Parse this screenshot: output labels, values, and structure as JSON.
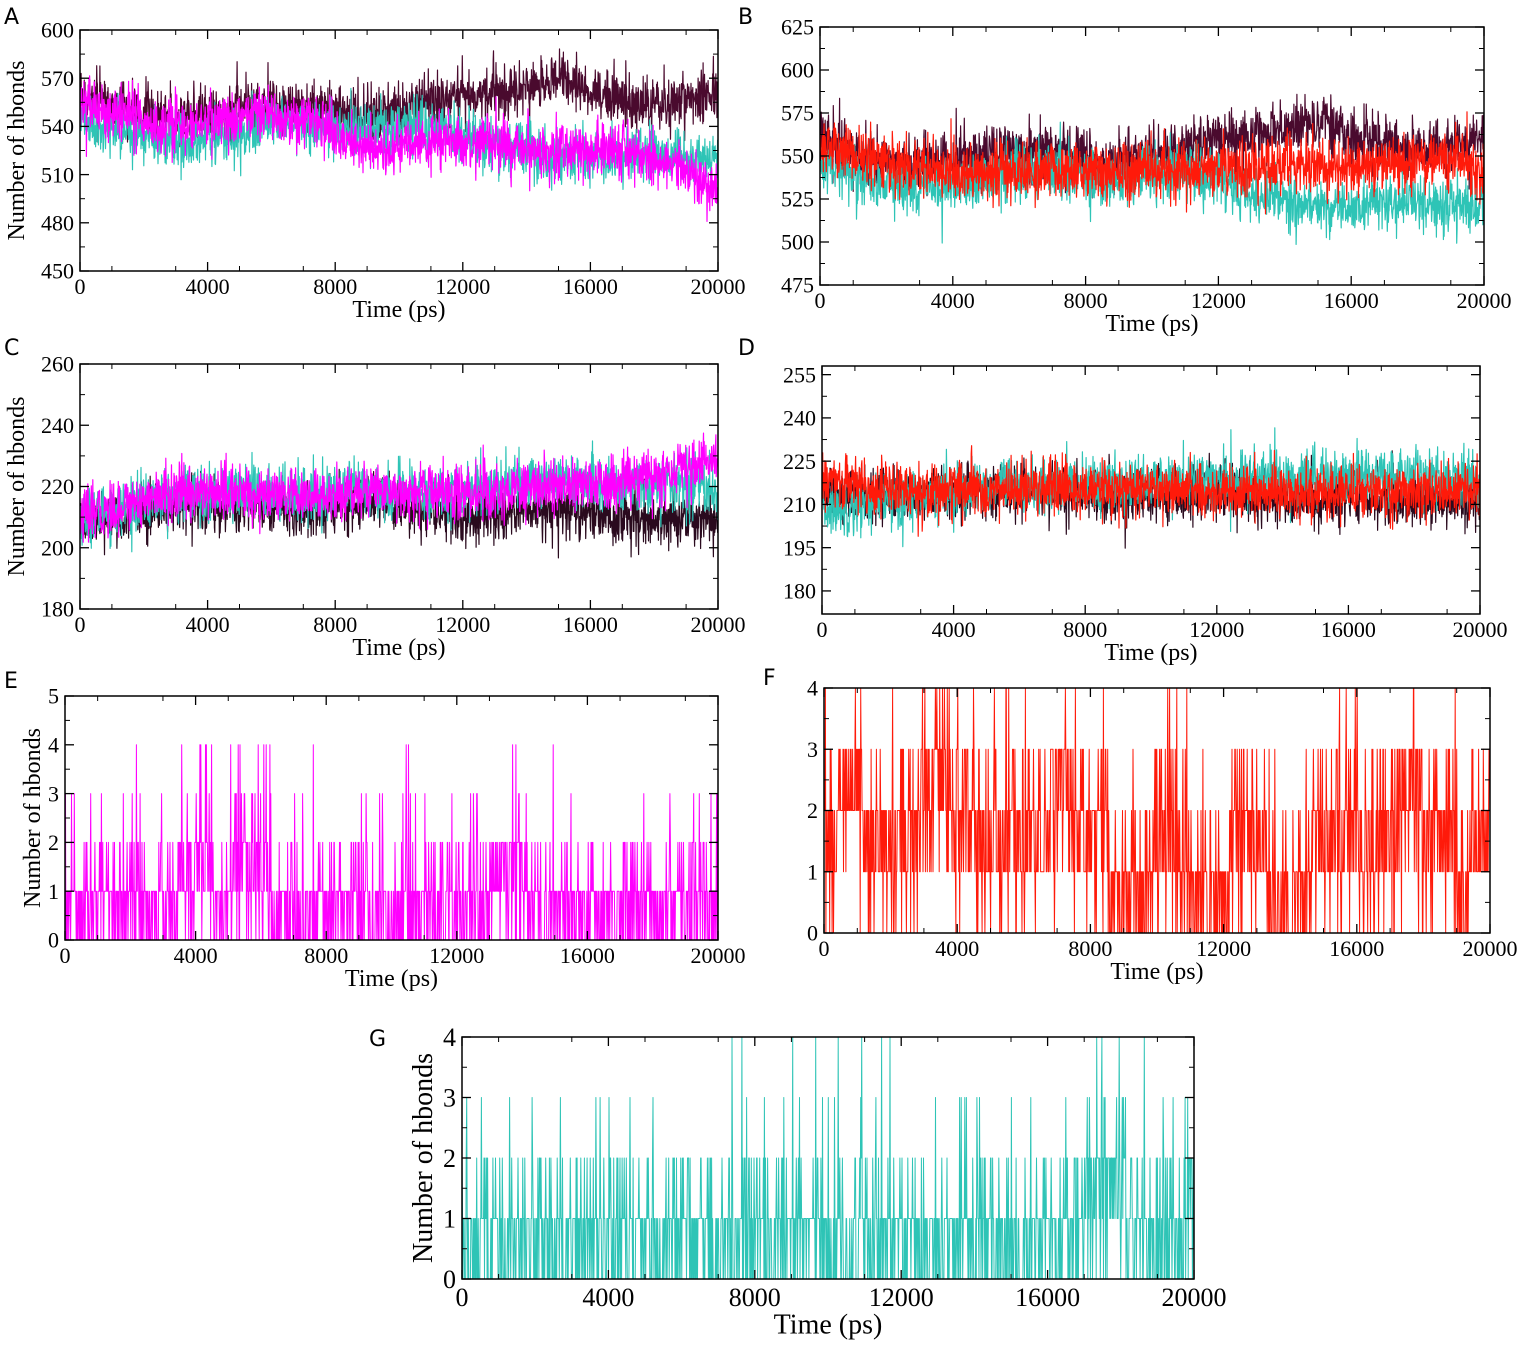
{
  "chart_data": [
    {
      "panel": "A",
      "type": "line",
      "xlabel": "Time (ps)",
      "ylabel": "Number of hbonds",
      "xlim": [
        0,
        20000
      ],
      "ylim": [
        450,
        600
      ],
      "xticks": [
        0,
        4000,
        8000,
        12000,
        16000,
        20000
      ],
      "yticks": [
        450,
        480,
        510,
        540,
        570,
        600
      ],
      "series": [
        {
          "name": "series-1",
          "color": "#4a0a2e",
          "values": [
            560,
            555,
            549,
            545,
            546,
            548,
            550,
            552,
            553,
            553,
            548,
            546,
            549,
            552,
            557,
            560,
            562,
            563,
            566,
            570,
            562,
            557,
            553,
            555,
            558,
            562
          ]
        },
        {
          "name": "series-2",
          "color": "#2ec4b6",
          "values": [
            545,
            540,
            536,
            532,
            530,
            531,
            535,
            540,
            542,
            541,
            538,
            536,
            538,
            541,
            540,
            535,
            528,
            525,
            522,
            520,
            520,
            523,
            523,
            522,
            521,
            520
          ]
        },
        {
          "name": "series-3",
          "color": "#ff00ff",
          "values": [
            555,
            550,
            546,
            542,
            540,
            541,
            544,
            548,
            547,
            543,
            535,
            528,
            525,
            527,
            530,
            532,
            530,
            526,
            524,
            525,
            526,
            525,
            522,
            518,
            510,
            500
          ]
        }
      ]
    },
    {
      "panel": "B",
      "type": "line",
      "xlabel": "Time (ps)",
      "ylabel": "",
      "xlim": [
        0,
        20000
      ],
      "ylim": [
        475,
        625
      ],
      "xticks": [
        0,
        4000,
        8000,
        12000,
        16000,
        20000
      ],
      "yticks": [
        475,
        500,
        525,
        550,
        575,
        600,
        625
      ],
      "series": [
        {
          "name": "series-1",
          "color": "#4a0a2e",
          "values": [
            560,
            555,
            549,
            545,
            546,
            548,
            550,
            552,
            553,
            553,
            548,
            546,
            549,
            552,
            557,
            560,
            562,
            563,
            566,
            570,
            562,
            557,
            553,
            555,
            558,
            560
          ]
        },
        {
          "name": "series-2",
          "color": "#2ec4b6",
          "values": [
            545,
            540,
            536,
            532,
            530,
            531,
            535,
            540,
            542,
            541,
            538,
            536,
            538,
            541,
            540,
            535,
            528,
            525,
            522,
            520,
            520,
            523,
            523,
            522,
            521,
            520
          ]
        },
        {
          "name": "series-3",
          "color": "#ff1a0a",
          "values": [
            555,
            552,
            548,
            545,
            543,
            541,
            540,
            540,
            541,
            541,
            540,
            540,
            540,
            541,
            541,
            542,
            542,
            543,
            543,
            544,
            544,
            545,
            546,
            548,
            549,
            538
          ]
        }
      ]
    },
    {
      "panel": "C",
      "type": "line",
      "xlabel": "Time (ps)",
      "ylabel": "Number of hbonds",
      "xlim": [
        0,
        20000
      ],
      "ylim": [
        180,
        260
      ],
      "xticks": [
        0,
        4000,
        8000,
        12000,
        16000,
        20000
      ],
      "yticks": [
        180,
        200,
        220,
        240,
        260
      ],
      "series": [
        {
          "name": "series-1",
          "color": "#2a0a1e",
          "values": [
            208,
            209,
            211,
            213,
            214,
            214,
            215,
            214,
            213,
            212,
            214,
            216,
            215,
            213,
            212,
            211,
            210,
            211,
            212,
            212,
            211,
            210,
            210,
            209,
            209,
            210
          ]
        },
        {
          "name": "series-2",
          "color": "#2ec4b6",
          "values": [
            210,
            212,
            214,
            216,
            217,
            218,
            218,
            218,
            218,
            217,
            218,
            219,
            218,
            218,
            218,
            219,
            220,
            221,
            222,
            222,
            221,
            220,
            220,
            221,
            221,
            218
          ]
        },
        {
          "name": "series-3",
          "color": "#ff00ff",
          "values": [
            210,
            212,
            215,
            217,
            218,
            218,
            218,
            217,
            216,
            216,
            217,
            219,
            219,
            218,
            218,
            218,
            218,
            219,
            219,
            220,
            221,
            221,
            223,
            224,
            226,
            230
          ]
        }
      ]
    },
    {
      "panel": "D",
      "type": "line",
      "xlabel": "Time (ps)",
      "ylabel": "",
      "xlim": [
        0,
        20000
      ],
      "ylim": [
        172,
        258
      ],
      "xticks": [
        0,
        4000,
        8000,
        12000,
        16000,
        20000
      ],
      "yticks": [
        180,
        195,
        210,
        225,
        240,
        255
      ],
      "series": [
        {
          "name": "series-1",
          "color": "#2a0a1e",
          "values": [
            214,
            214,
            213,
            213,
            214,
            214,
            214,
            214,
            214,
            214,
            214,
            213,
            213,
            213,
            213,
            214,
            213,
            212,
            212,
            212,
            212,
            212,
            211,
            212,
            212,
            213
          ]
        },
        {
          "name": "series-2",
          "color": "#2ec4b6",
          "values": [
            208,
            209,
            211,
            212,
            214,
            215,
            215,
            216,
            216,
            216,
            217,
            217,
            217,
            218,
            218,
            218,
            218,
            219,
            219,
            220,
            220,
            220,
            220,
            220,
            219,
            218
          ]
        },
        {
          "name": "series-3",
          "color": "#ff1a0a",
          "values": [
            218,
            217,
            216,
            215,
            215,
            215,
            215,
            215,
            215,
            215,
            215,
            215,
            215,
            215,
            214,
            214,
            214,
            214,
            214,
            214,
            214,
            214,
            214,
            214,
            215,
            218
          ]
        }
      ]
    },
    {
      "panel": "E",
      "type": "line",
      "xlabel": "Time (ps)",
      "ylabel": "Number of hbonds",
      "xlim": [
        0,
        20000
      ],
      "ylim": [
        0,
        5
      ],
      "xticks": [
        0,
        4000,
        8000,
        12000,
        16000,
        20000
      ],
      "yticks": [
        0,
        1,
        2,
        3,
        4,
        5
      ],
      "series": [
        {
          "name": "series-1",
          "color": "#ff00ff",
          "values": [
            1,
            1,
            0,
            1,
            1,
            2,
            1,
            2,
            1,
            1,
            1,
            0,
            0,
            1,
            1,
            1,
            1,
            2,
            1,
            1,
            1,
            1,
            1,
            0,
            1,
            0
          ]
        }
      ]
    },
    {
      "panel": "F",
      "type": "line",
      "xlabel": "Time (ps)",
      "ylabel": "",
      "xlim": [
        0,
        20000
      ],
      "ylim": [
        0,
        4
      ],
      "xticks": [
        0,
        4000,
        8000,
        12000,
        16000,
        20000
      ],
      "yticks": [
        0,
        1,
        2,
        3,
        4
      ],
      "series": [
        {
          "name": "series-1",
          "color": "#ff1a0a",
          "values": [
            2,
            3,
            2,
            2,
            3,
            3,
            2,
            2,
            2,
            3,
            2,
            1,
            1,
            2,
            1,
            1,
            2,
            1,
            1,
            2,
            2,
            2,
            3,
            2,
            1,
            2
          ]
        }
      ]
    },
    {
      "panel": "G",
      "type": "line",
      "xlabel": "Time (ps)",
      "ylabel": "Number of hbonds",
      "xlim": [
        0,
        20000
      ],
      "ylim": [
        0,
        4
      ],
      "xticks": [
        0,
        4000,
        8000,
        12000,
        16000,
        20000
      ],
      "yticks": [
        0,
        1,
        2,
        3,
        4
      ],
      "series": [
        {
          "name": "series-1",
          "color": "#2ec4b6",
          "values": [
            1,
            1,
            1,
            1,
            1,
            1,
            1,
            1,
            1,
            1,
            1,
            1,
            1,
            1,
            1,
            1,
            1,
            1,
            1,
            1,
            1,
            1,
            2,
            1,
            1,
            1
          ]
        }
      ]
    }
  ]
}
